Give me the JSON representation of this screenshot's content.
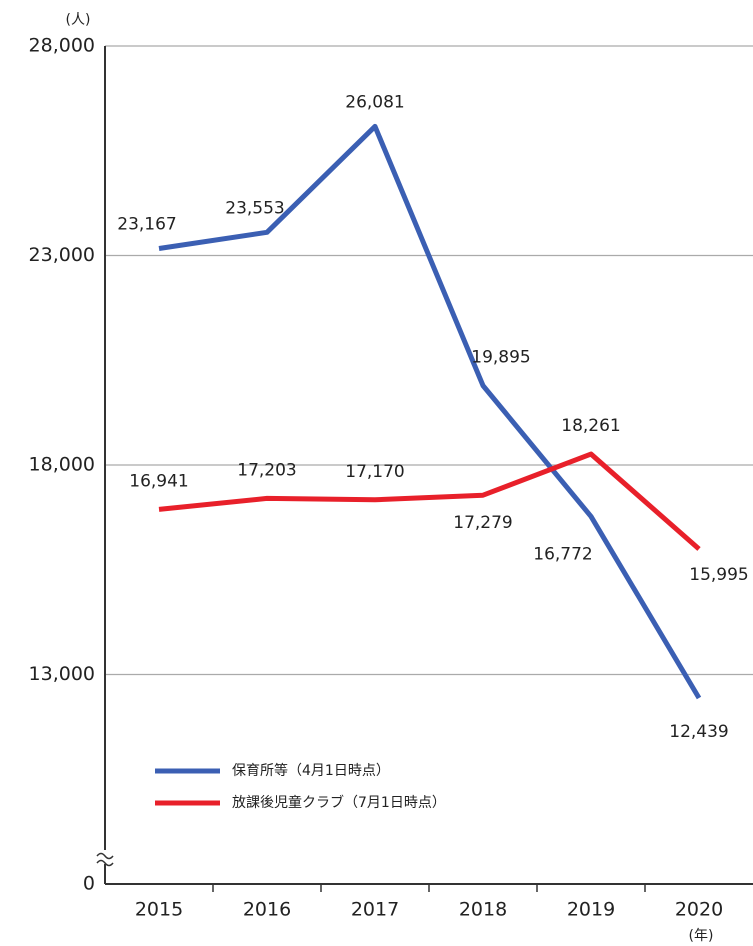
{
  "chart_data": {
    "type": "line",
    "y_unit": "(人)",
    "x_unit": "(年)",
    "categories": [
      "2015",
      "2016",
      "2017",
      "2018",
      "2019",
      "2020"
    ],
    "series": [
      {
        "name": "保育所等（4月1日時点）",
        "color": "#3b5fb3",
        "values": [
          23167,
          23553,
          26081,
          19895,
          16772,
          12439
        ],
        "value_labels": [
          "23,167",
          "23,553",
          "26,081",
          "19,895",
          "16,772",
          "12,439"
        ]
      },
      {
        "name": "放課後児童クラブ（7月1日時点）",
        "color": "#e8202a",
        "values": [
          16941,
          17203,
          17170,
          17279,
          18261,
          15995
        ],
        "value_labels": [
          "16,941",
          "17,203",
          "17,170",
          "17,279",
          "18,261",
          "15,995"
        ]
      }
    ],
    "ylim": [
      0,
      28000
    ],
    "yticks": [
      {
        "value": 0,
        "label": "0"
      },
      {
        "value": 13000,
        "label": "13,000"
      },
      {
        "value": 18000,
        "label": "18,000"
      },
      {
        "value": 23000,
        "label": "23,000"
      },
      {
        "value": 28000,
        "label": "28,000"
      }
    ],
    "axis_break": true,
    "grid": true,
    "legend": "lower left"
  }
}
